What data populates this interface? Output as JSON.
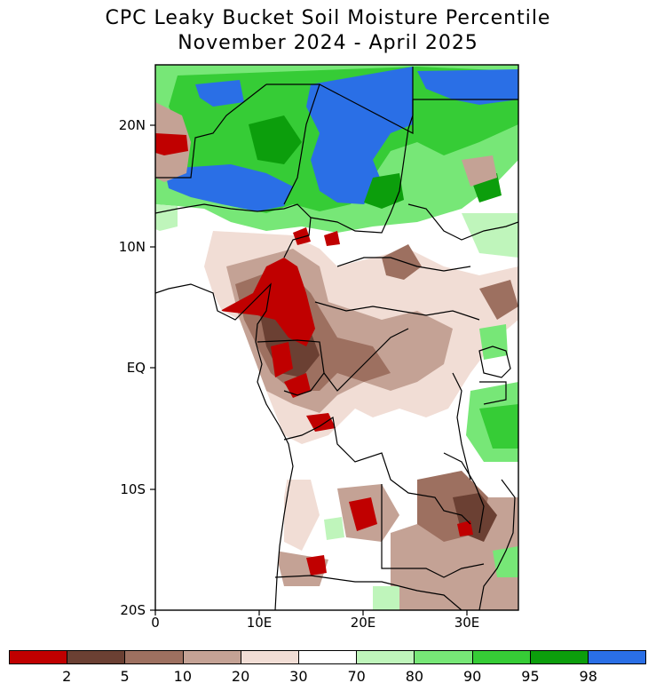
{
  "title_line1": "CPC Leaky Bucket Soil Moisture Percentile",
  "title_line2": "November 2024 - April 2025",
  "y_axis_labels": [
    "20N",
    "10N",
    "EQ",
    "10S",
    "20S"
  ],
  "x_axis_labels": [
    "0",
    "10E",
    "20E",
    "30E"
  ],
  "legend": {
    "colors": [
      "#c00000",
      "#6b4033",
      "#9d7060",
      "#c4a295",
      "#f1ddd5",
      "#ffffff",
      "#bff5bb",
      "#77e777",
      "#36cc36",
      "#0c9e0c",
      "#2a6fe6"
    ],
    "labels": [
      "2",
      "5",
      "10",
      "20",
      "30",
      "70",
      "80",
      "90",
      "95",
      "98"
    ]
  }
}
